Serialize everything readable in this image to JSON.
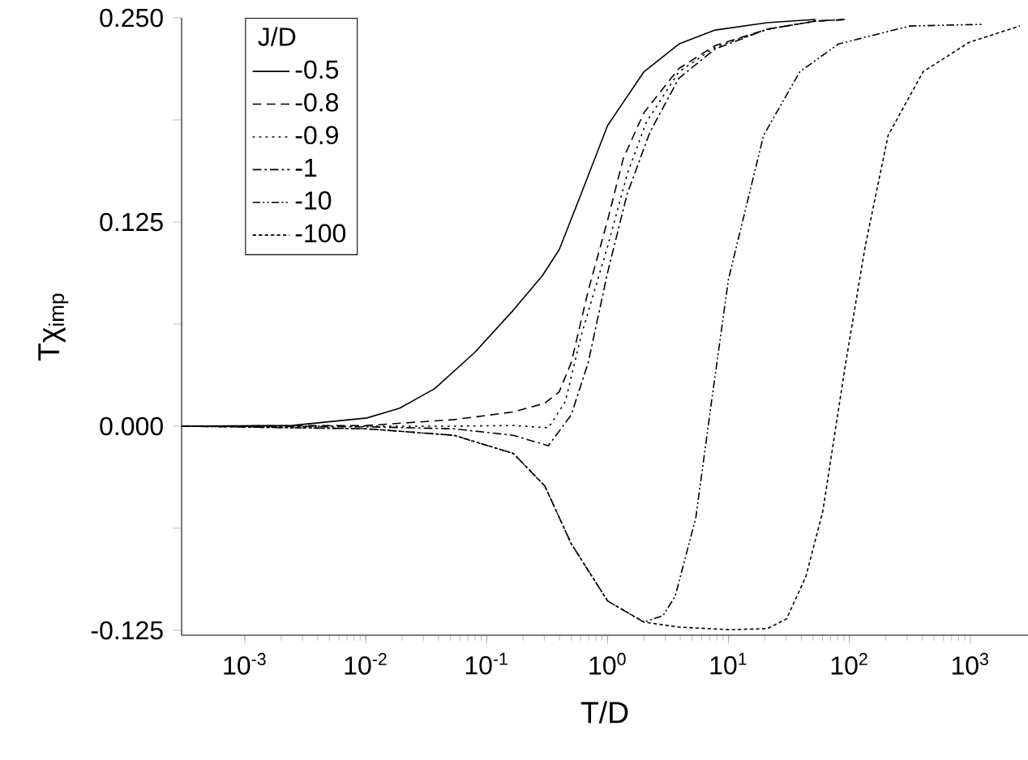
{
  "chart_data": {
    "type": "line",
    "xlabel": "T/D",
    "ylabel": "Tχ$_{imp}$",
    "legend_title": "J/D",
    "log": "x",
    "legend": "top left",
    "grid": false,
    "xlim": [
      0.0003,
      3000
    ],
    "xticks": [
      {
        "value": 0.001,
        "label": "10$^{-3}$"
      },
      {
        "value": 0.01,
        "label": "10$^{-2}$"
      },
      {
        "value": 0.1,
        "label": "10$^{-1}$"
      },
      {
        "value": 1,
        "label": "10$^{0}$"
      },
      {
        "value": 10,
        "label": "10$^{1}$"
      },
      {
        "value": 100,
        "label": "10$^{2}$"
      },
      {
        "value": 1000,
        "label": "10$^{3}$"
      }
    ],
    "ylim": [
      -0.128,
      0.25
    ],
    "yticks": [
      {
        "value": -0.125,
        "label": "-0.125"
      },
      {
        "value": -0.0625,
        "label": null
      },
      {
        "value": 0,
        "label": "0.000"
      },
      {
        "value": 0.0625,
        "label": null
      },
      {
        "value": 0.125,
        "label": "0.125"
      },
      {
        "value": 0.1875,
        "label": null
      },
      {
        "value": 0.25,
        "label": "0.250"
      }
    ],
    "series": [
      {
        "name": "-0.5",
        "color": "#000000",
        "line_style": "solid",
        "x": [
          0.0003,
          0.00245,
          0.0102,
          0.0191,
          0.0372,
          0.0794,
          0.166,
          0.288,
          0.398,
          0.603,
          1,
          2.0,
          3.89,
          7.76,
          20.9,
          52.5
        ],
        "values": [
          0,
          0.0004,
          0.005,
          0.011,
          0.023,
          0.045,
          0.071,
          0.092,
          0.108,
          0.142,
          0.184,
          0.217,
          0.234,
          0.2425,
          0.247,
          0.249
        ]
      },
      {
        "name": "-0.8",
        "color": "#000000",
        "line_style": "dashed",
        "x": [
          0.0003,
          0.0102,
          0.0537,
          0.166,
          0.302,
          0.398,
          0.501,
          0.692,
          1,
          1.35,
          2.0,
          3.89,
          7.76,
          20.9,
          52.5,
          93.3
        ],
        "values": [
          0,
          0.0004,
          0.004,
          0.0087,
          0.014,
          0.021,
          0.039,
          0.083,
          0.126,
          0.164,
          0.192,
          0.219,
          0.233,
          0.243,
          0.248,
          0.249
        ]
      },
      {
        "name": "-0.9",
        "color": "#000000",
        "line_style": "dotted",
        "x": [
          0.0003,
          0.0537,
          0.166,
          0.324,
          0.447,
          0.603,
          1,
          1.45,
          2.09,
          3.89,
          7.76,
          20.9,
          52.5,
          93.3
        ],
        "values": [
          0,
          0,
          0.0004,
          -0.001,
          0.015,
          0.055,
          0.11,
          0.154,
          0.186,
          0.217,
          0.232,
          0.243,
          0.248,
          0.249
        ]
      },
      {
        "name": "-1",
        "color": "#000000",
        "line_style": "dashdot",
        "x": [
          0.0003,
          0.0102,
          0.0537,
          0.166,
          0.324,
          0.501,
          0.692,
          1,
          1.45,
          2.24,
          3.89,
          7.76,
          20.9,
          52.5,
          93.3
        ],
        "values": [
          0,
          -0.0004,
          -0.0016,
          -0.0056,
          -0.012,
          0.007,
          0.039,
          0.094,
          0.142,
          0.18,
          0.213,
          0.231,
          0.243,
          0.248,
          0.249
        ]
      },
      {
        "name": "-10",
        "color": "#000000",
        "line_style": "dashdotdot",
        "x": [
          0.0003,
          0.0102,
          0.0537,
          0.166,
          0.302,
          0.501,
          1,
          2.0,
          2.88,
          3.63,
          5.37,
          7.24,
          10,
          19.5,
          38.9,
          81.3,
          316,
          1259
        ],
        "values": [
          0,
          -0.0016,
          -0.0056,
          -0.0167,
          -0.0365,
          -0.072,
          -0.107,
          -0.12,
          -0.116,
          -0.104,
          -0.056,
          0.015,
          0.09,
          0.178,
          0.217,
          0.234,
          0.245,
          0.246
        ]
      },
      {
        "name": "-100",
        "color": "#000000",
        "line_style": "shortdash",
        "x": [
          0.0003,
          0.0102,
          0.0537,
          0.166,
          0.302,
          0.501,
          1,
          2.0,
          3.89,
          10,
          20.9,
          30.2,
          43.7,
          60.3,
          93.3,
          135,
          209,
          407,
          977,
          2570
        ],
        "values": [
          0,
          -0.0016,
          -0.0056,
          -0.0167,
          -0.0365,
          -0.072,
          -0.107,
          -0.12,
          -0.123,
          -0.1246,
          -0.124,
          -0.118,
          -0.092,
          -0.052,
          0.039,
          0.11,
          0.178,
          0.217,
          0.235,
          0.245
        ]
      }
    ]
  }
}
